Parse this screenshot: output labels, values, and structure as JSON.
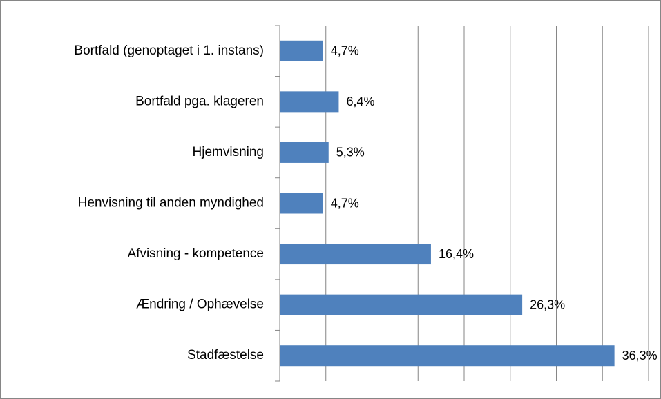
{
  "chart_data": {
    "type": "bar",
    "orientation": "horizontal",
    "categories": [
      "Bortfald (genoptaget i 1. instans)",
      "Bortfald pga. klageren",
      "Hjemvisning",
      "Henvisning til anden myndighed",
      "Afvisning - kompetence",
      "Ændring / Ophævelse",
      "Stadfæstelse"
    ],
    "values": [
      4.7,
      6.4,
      5.3,
      4.7,
      16.4,
      26.3,
      36.3
    ],
    "value_labels": [
      "4,7%",
      "6,4%",
      "5,3%",
      "4,7%",
      "16,4%",
      "26,3%",
      "36,3%"
    ],
    "color": "#4f81bd",
    "xlim": [
      0,
      40
    ],
    "xticks": [
      0,
      5,
      10,
      15,
      20,
      25,
      30,
      35,
      40
    ],
    "grid": true
  }
}
